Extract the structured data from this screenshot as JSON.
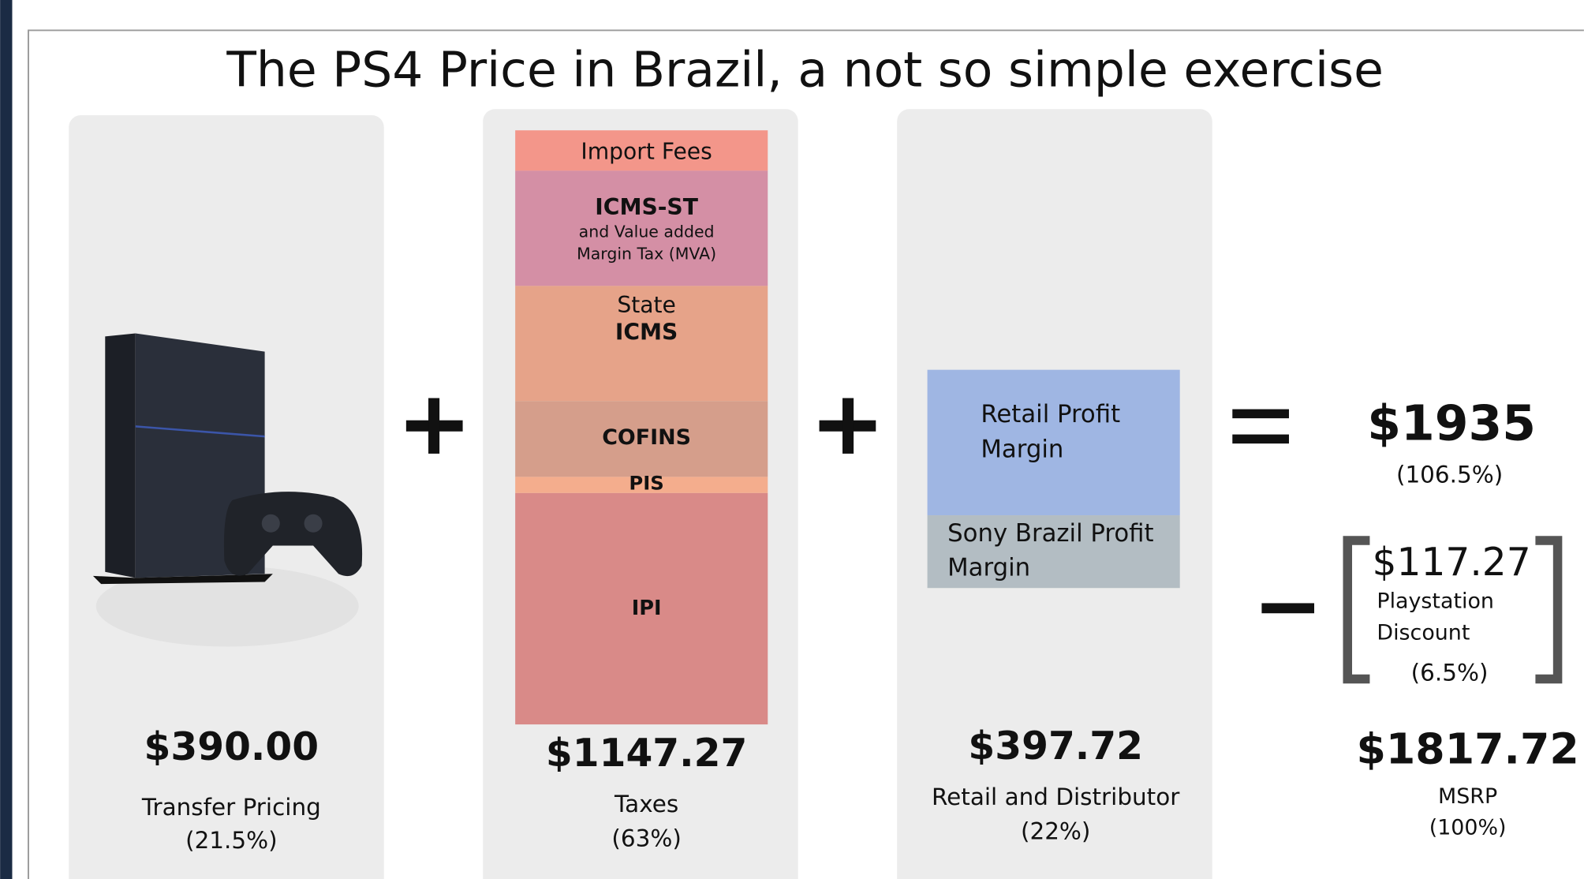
{
  "title": "The PS4 Price in Brazil, a not so simple exercise",
  "columns": [
    {
      "amount": "$390.00",
      "label": "Transfer Pricing",
      "share": "(21.5%)"
    },
    {
      "amount": "$1147.27",
      "label": "Taxes",
      "share": "(63%)"
    },
    {
      "amount": "$397.72",
      "label": "Retail and Distributor",
      "share": "(22%)"
    }
  ],
  "tax_layers": [
    {
      "lines": [
        "Import Fees"
      ]
    },
    {
      "lines": [
        "ICMS-ST",
        "and Value added",
        "Margin Tax (MVA)"
      ]
    },
    {
      "lines": [
        "State",
        "ICMS"
      ]
    },
    {
      "lines": [
        "COFINS"
      ]
    },
    {
      "lines": [
        "PIS"
      ]
    },
    {
      "lines": [
        "IPI"
      ]
    }
  ],
  "margins": [
    {
      "lines": [
        "Retail Profit",
        "Margin"
      ]
    },
    {
      "lines": [
        "Sony Brazil Profit",
        "Margin"
      ]
    }
  ],
  "gross": {
    "amount": "$1935",
    "share": "(106.5%)"
  },
  "discount": {
    "amount": "$117.27",
    "lines": [
      "Playstation",
      "Discount"
    ],
    "share": "(6.5%)"
  },
  "msrp": {
    "amount": "$1817.72",
    "label": "MSRP",
    "share": "(100%)"
  }
}
